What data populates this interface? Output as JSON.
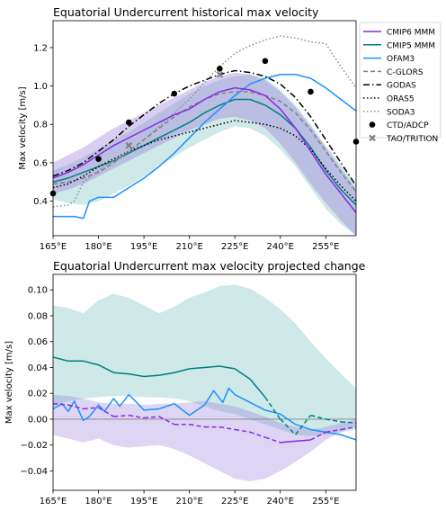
{
  "colors": {
    "cmip6": "#8a2be2",
    "cmip6_band": "#9370db",
    "cmip5": "#008080",
    "cmip5_band": "#5fb3b3",
    "ofam3": "#1e90ff",
    "cglors": "#808080",
    "godas": "#000000",
    "oras5": "#000000",
    "soda3": "#8c8c8c",
    "obs": "#000000",
    "tao": "#808080"
  },
  "chart_data": [
    {
      "type": "line",
      "title": "Equatorial Undercurrent historical max velocity",
      "xlabel": "",
      "ylabel": "Max velocity [m/s]",
      "xlim": [
        165,
        265
      ],
      "ylim": [
        0.22,
        1.34
      ],
      "x_ticks": [
        165,
        180,
        195,
        210,
        225,
        240,
        255
      ],
      "x_tick_labels": [
        "165°E",
        "180°E",
        "195°E",
        "210°E",
        "225°E",
        "240°E",
        "255°E"
      ],
      "y_ticks": [
        0.4,
        0.6,
        0.8,
        1.0,
        1.2
      ],
      "y_tick_labels": [
        "0.4",
        "0.6",
        "0.8",
        "1.0",
        "1.2"
      ],
      "legend_position": "outside-right-top",
      "series": [
        {
          "name": "CMIP6 MMM",
          "style": "solid",
          "color_key": "cmip6",
          "x": [
            165,
            170,
            175,
            180,
            185,
            190,
            195,
            200,
            205,
            210,
            215,
            220,
            225,
            230,
            235,
            240,
            245,
            250,
            255,
            260,
            265
          ],
          "y": [
            0.52,
            0.55,
            0.59,
            0.64,
            0.69,
            0.73,
            0.77,
            0.81,
            0.85,
            0.88,
            0.93,
            0.97,
            0.99,
            0.98,
            0.95,
            0.88,
            0.78,
            0.66,
            0.54,
            0.44,
            0.34
          ],
          "band_lower": [
            0.44,
            0.46,
            0.49,
            0.53,
            0.57,
            0.61,
            0.65,
            0.69,
            0.73,
            0.77,
            0.8,
            0.83,
            0.84,
            0.82,
            0.78,
            0.7,
            0.6,
            0.49,
            0.39,
            0.3,
            0.22
          ],
          "band_upper": [
            0.6,
            0.64,
            0.68,
            0.73,
            0.78,
            0.82,
            0.86,
            0.9,
            0.94,
            0.98,
            1.02,
            1.05,
            1.07,
            1.06,
            1.03,
            0.97,
            0.89,
            0.79,
            0.68,
            0.57,
            0.46
          ]
        },
        {
          "name": "CMIP5 MMM",
          "style": "solid",
          "color_key": "cmip5",
          "x": [
            165,
            170,
            175,
            180,
            185,
            190,
            195,
            200,
            205,
            210,
            215,
            220,
            225,
            230,
            235,
            240,
            245,
            250,
            255,
            260,
            265
          ],
          "y": [
            0.5,
            0.52,
            0.55,
            0.58,
            0.61,
            0.65,
            0.69,
            0.73,
            0.77,
            0.81,
            0.86,
            0.9,
            0.93,
            0.93,
            0.9,
            0.85,
            0.78,
            0.68,
            0.56,
            0.46,
            0.38
          ],
          "band_lower": [
            0.41,
            0.39,
            0.38,
            0.4,
            0.44,
            0.48,
            0.53,
            0.58,
            0.63,
            0.68,
            0.72,
            0.76,
            0.79,
            0.78,
            0.74,
            0.67,
            0.58,
            0.47,
            0.36,
            0.28,
            0.22
          ],
          "band_upper": [
            0.56,
            0.59,
            0.63,
            0.67,
            0.72,
            0.76,
            0.81,
            0.86,
            0.91,
            0.96,
            1.0,
            1.03,
            1.05,
            1.06,
            1.04,
            0.98,
            0.9,
            0.8,
            0.69,
            0.59,
            0.49
          ]
        },
        {
          "name": "OFAM3",
          "style": "solid",
          "color_key": "ofam3",
          "x": [
            165,
            168,
            172,
            175,
            177,
            180,
            185,
            190,
            195,
            200,
            205,
            210,
            215,
            220,
            225,
            230,
            235,
            240,
            245,
            250,
            255,
            260,
            265
          ],
          "y": [
            0.32,
            0.32,
            0.32,
            0.31,
            0.4,
            0.42,
            0.42,
            0.47,
            0.52,
            0.58,
            0.65,
            0.73,
            0.81,
            0.88,
            0.95,
            1.01,
            1.04,
            1.06,
            1.06,
            1.04,
            0.99,
            0.93,
            0.87
          ]
        },
        {
          "name": "C-GLORS",
          "style": "dashed",
          "color_key": "cglors",
          "x": [
            165,
            170,
            175,
            180,
            185,
            190,
            195,
            200,
            205,
            210,
            215,
            220,
            225,
            230,
            235,
            240,
            245,
            250,
            255,
            260,
            265
          ],
          "y": [
            0.49,
            0.5,
            0.52,
            0.55,
            0.6,
            0.66,
            0.72,
            0.78,
            0.84,
            0.89,
            0.93,
            0.96,
            0.97,
            0.97,
            0.95,
            0.92,
            0.86,
            0.77,
            0.66,
            0.55,
            0.45
          ]
        },
        {
          "name": "GODAS",
          "style": "dashdot",
          "color_key": "godas",
          "x": [
            165,
            170,
            175,
            180,
            185,
            190,
            195,
            200,
            205,
            210,
            215,
            220,
            225,
            230,
            235,
            240,
            245,
            250,
            255,
            260,
            265
          ],
          "y": [
            0.53,
            0.56,
            0.6,
            0.66,
            0.72,
            0.79,
            0.85,
            0.91,
            0.96,
            1.0,
            1.03,
            1.06,
            1.08,
            1.07,
            1.05,
            1.01,
            0.94,
            0.84,
            0.72,
            0.6,
            0.48
          ]
        },
        {
          "name": "ORAS5",
          "style": "dotted",
          "color_key": "oras5",
          "x": [
            165,
            170,
            175,
            180,
            185,
            190,
            195,
            200,
            205,
            210,
            215,
            220,
            225,
            230,
            235,
            240,
            245,
            250,
            255,
            260,
            265
          ],
          "y": [
            0.47,
            0.49,
            0.53,
            0.58,
            0.62,
            0.66,
            0.69,
            0.72,
            0.74,
            0.76,
            0.78,
            0.8,
            0.82,
            0.81,
            0.8,
            0.78,
            0.74,
            0.67,
            0.57,
            0.48,
            0.4
          ]
        },
        {
          "name": "SODA3",
          "style": "dotted",
          "color_key": "soda3",
          "x": [
            165,
            170,
            172,
            175,
            180,
            185,
            190,
            195,
            200,
            205,
            210,
            215,
            220,
            225,
            230,
            235,
            240,
            245,
            250,
            255,
            260,
            265
          ],
          "y": [
            0.37,
            0.38,
            0.4,
            0.5,
            0.56,
            0.61,
            0.66,
            0.72,
            0.79,
            0.86,
            0.93,
            1.02,
            1.1,
            1.17,
            1.21,
            1.24,
            1.26,
            1.25,
            1.23,
            1.22,
            1.1,
            0.99
          ]
        }
      ],
      "points": [
        {
          "name": "CTD/ADCP",
          "marker": "circle",
          "color_key": "obs",
          "x": [
            165,
            180,
            190,
            205,
            220,
            235,
            250,
            265
          ],
          "y": [
            0.44,
            0.62,
            0.81,
            0.96,
            1.09,
            1.13,
            0.97,
            0.71
          ]
        },
        {
          "name": "TAO/TRITION",
          "marker": "x",
          "color_key": "tao",
          "x": [
            190,
            220
          ],
          "y": [
            0.69,
            1.06
          ]
        }
      ]
    },
    {
      "type": "line",
      "title": "Equatorial Undercurrent max velocity projected change",
      "xlabel": "",
      "ylabel": "Max velocity [m/s]",
      "xlim": [
        165,
        265
      ],
      "ylim": [
        -0.055,
        0.112
      ],
      "x_ticks": [
        165,
        180,
        195,
        210,
        225,
        240,
        255
      ],
      "x_tick_labels": [
        "165°E",
        "180°E",
        "195°E",
        "210°E",
        "225°E",
        "240°E",
        "255°E"
      ],
      "y_ticks": [
        -0.04,
        -0.02,
        0.0,
        0.02,
        0.04,
        0.06,
        0.08,
        0.1
      ],
      "y_tick_labels": [
        "−0.04",
        "−0.02",
        "0.00",
        "0.02",
        "0.04",
        "0.06",
        "0.08",
        "0.10"
      ],
      "zero_line": true,
      "series": [
        {
          "name": "CMIP5 MMM",
          "color_key": "cmip5",
          "style": "solid_then_dashed",
          "dashed_from_x": 236,
          "x": [
            165,
            170,
            175,
            180,
            185,
            190,
            195,
            200,
            205,
            210,
            215,
            220,
            225,
            230,
            235,
            240,
            245,
            250,
            255,
            260,
            265
          ],
          "y": [
            0.048,
            0.045,
            0.045,
            0.042,
            0.036,
            0.035,
            0.033,
            0.034,
            0.036,
            0.039,
            0.04,
            0.041,
            0.039,
            0.031,
            0.017,
            0.0,
            -0.012,
            0.003,
            0.0,
            -0.002,
            -0.003
          ],
          "band_lower": [
            0.01,
            0.014,
            0.016,
            0.017,
            0.018,
            0.018,
            0.017,
            0.017,
            0.016,
            0.014,
            0.01,
            0.006,
            0.004,
            0.0,
            -0.004,
            -0.008,
            -0.012,
            -0.013,
            -0.012,
            -0.01,
            -0.008
          ],
          "band_upper": [
            0.088,
            0.086,
            0.082,
            0.092,
            0.097,
            0.094,
            0.088,
            0.082,
            0.087,
            0.094,
            0.098,
            0.103,
            0.104,
            0.101,
            0.094,
            0.085,
            0.074,
            0.06,
            0.047,
            0.035,
            0.024
          ]
        },
        {
          "name": "CMIP6 MMM",
          "color_key": "cmip6",
          "style": "dashed_mixed",
          "solid_segments": [
            [
              238,
              248
            ]
          ],
          "x": [
            165,
            170,
            175,
            180,
            185,
            190,
            195,
            200,
            205,
            210,
            215,
            220,
            225,
            230,
            235,
            240,
            245,
            250,
            255,
            260,
            265
          ],
          "y": [
            0.012,
            0.011,
            0.008,
            0.009,
            0.002,
            0.003,
            0.001,
            0.002,
            -0.004,
            -0.004,
            -0.006,
            -0.006,
            -0.008,
            -0.01,
            -0.014,
            -0.018,
            -0.017,
            -0.016,
            -0.01,
            -0.008,
            -0.006
          ],
          "band_lower": [
            -0.012,
            -0.015,
            -0.018,
            -0.015,
            -0.02,
            -0.022,
            -0.021,
            -0.02,
            -0.023,
            -0.028,
            -0.034,
            -0.04,
            -0.046,
            -0.048,
            -0.046,
            -0.04,
            -0.033,
            -0.025,
            -0.016,
            -0.01,
            -0.005
          ],
          "band_upper": [
            0.019,
            0.018,
            0.016,
            0.013,
            0.012,
            0.012,
            0.011,
            0.012,
            0.012,
            0.013,
            0.014,
            0.012,
            0.01,
            0.006,
            0.002,
            -0.003,
            -0.006,
            -0.008,
            -0.006,
            -0.003,
            0.0
          ]
        },
        {
          "name": "OFAM3",
          "color_key": "ofam3",
          "style": "solid",
          "x": [
            165,
            168,
            170,
            172,
            175,
            177,
            180,
            182,
            185,
            187,
            190,
            193,
            195,
            200,
            205,
            210,
            215,
            218,
            221,
            223,
            225,
            230,
            235,
            240,
            245,
            250,
            255,
            260,
            265
          ],
          "y": [
            0.008,
            0.012,
            0.006,
            0.014,
            -0.001,
            0.002,
            0.011,
            0.006,
            0.016,
            0.01,
            0.019,
            0.012,
            0.007,
            0.008,
            0.012,
            0.003,
            0.011,
            0.022,
            0.013,
            0.024,
            0.019,
            0.013,
            0.007,
            0.004,
            -0.004,
            -0.008,
            -0.01,
            -0.012,
            -0.016
          ]
        }
      ]
    }
  ]
}
